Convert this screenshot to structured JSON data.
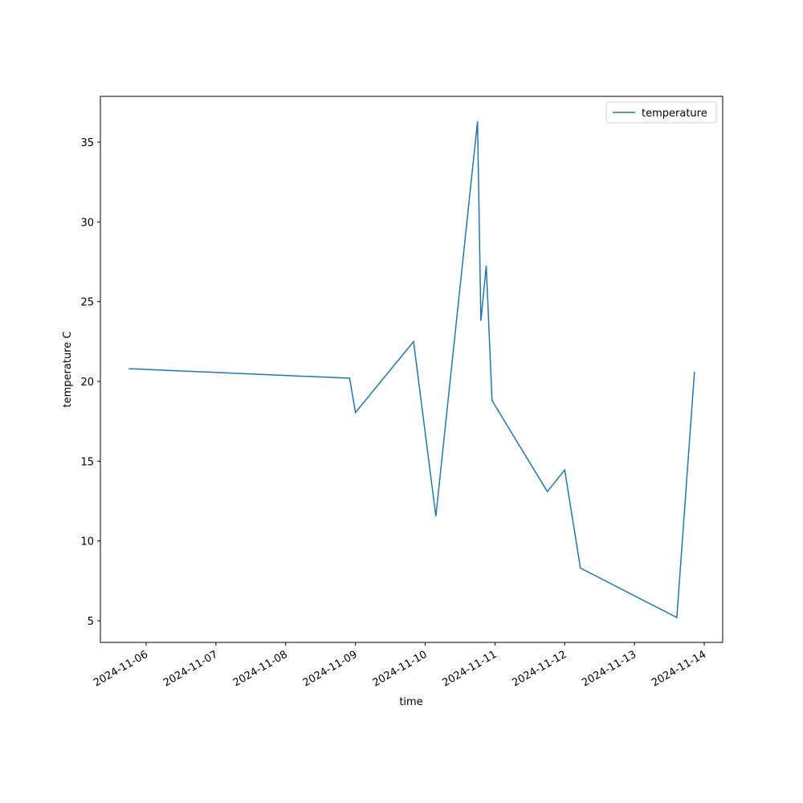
{
  "chart_data": {
    "type": "line",
    "x_label": "time",
    "y_label": "temperature C",
    "x": [
      "2024-11-05T18:00",
      "2024-11-08T22:00",
      "2024-11-09T00:00",
      "2024-11-09T20:00",
      "2024-11-10T03:40",
      "2024-11-10T18:00",
      "2024-11-10T19:10",
      "2024-11-10T21:00",
      "2024-11-10T23:00",
      "2024-11-11T18:00",
      "2024-11-12T00:00",
      "2024-11-12T05:24",
      "2024-11-13T14:34",
      "2024-11-13T20:38"
    ],
    "series": [
      {
        "name": "temperature",
        "color": "#1f77b4",
        "values": [
          20.8,
          20.2,
          18.05,
          22.5,
          11.55,
          36.3,
          23.8,
          27.25,
          18.8,
          13.1,
          14.45,
          8.3,
          5.2,
          20.6
        ]
      }
    ],
    "xlim": [
      "2024-11-05T08:15",
      "2024-11-14T06:21"
    ],
    "xticks": [
      "2024-11-06",
      "2024-11-07",
      "2024-11-08",
      "2024-11-09",
      "2024-11-10",
      "2024-11-11",
      "2024-11-12",
      "2024-11-13",
      "2024-11-14"
    ],
    "ylim": [
      3.64,
      37.87
    ],
    "yticks": [
      5,
      10,
      15,
      20,
      25,
      30,
      35
    ],
    "grid": false,
    "legend": "upper right"
  }
}
